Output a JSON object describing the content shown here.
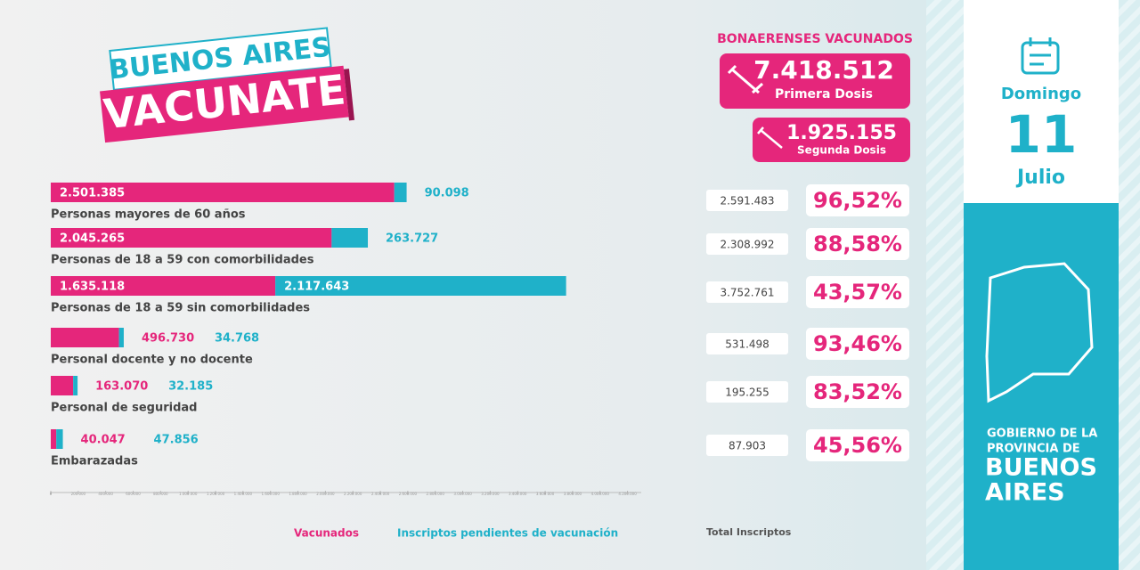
{
  "header": {
    "logo_line1": "BUENOS AIRES",
    "logo_line2": "VACUNATE"
  },
  "summary": {
    "title": "BONAERENSES VACUNADOS",
    "first_dose": {
      "number": "7.418.512",
      "label": "Primera Dosis"
    },
    "second_dose": {
      "number": "1.925.155",
      "label": "Segunda Dosis"
    }
  },
  "date": {
    "weekday": "Domingo",
    "day": "11",
    "month": "Julio"
  },
  "government": {
    "line1": "GOBIERNO DE LA",
    "line2": "PROVINCIA DE",
    "line3": "BUENOS",
    "line4": "AIRES"
  },
  "chart_data": {
    "type": "bar",
    "orientation": "horizontal",
    "stacked": true,
    "categories": [
      "Personas mayores de 60 años",
      "Personas de 18 a 59 con comorbilidades",
      "Personas de 18 a 59 sin comorbilidades",
      "Personal docente y no docente",
      "Personal de seguridad",
      "Embarazadas"
    ],
    "series": [
      {
        "name": "Vacunados",
        "color": "#e5267b",
        "values": [
          2501385,
          2045265,
          1635118,
          496730,
          163070,
          40047
        ],
        "value_labels": [
          "2.501.385",
          "2.045.265",
          "1.635.118",
          "496.730",
          "163.070",
          "40.047"
        ]
      },
      {
        "name": "Inscriptos pendientes  de vacunación",
        "color": "#1fb1c9",
        "values": [
          90098,
          263727,
          2117643,
          34768,
          32185,
          47856
        ],
        "value_labels": [
          "90.098",
          "263.727",
          "2.117.643",
          "34.768",
          "32.185",
          "47.856"
        ]
      }
    ],
    "totals": {
      "name": "Total Inscriptos",
      "values": [
        2591483,
        2308992,
        3752761,
        531498,
        195255,
        87903
      ],
      "value_labels": [
        "2.591.483",
        "2.308.992",
        "3.752.761",
        "531.498",
        "195.255",
        "87.903"
      ]
    },
    "percentages": {
      "values": [
        96.52,
        88.58,
        43.57,
        93.46,
        83.52,
        45.56
      ],
      "value_labels": [
        "96,52%",
        "88,58%",
        "43,57%",
        "93,46%",
        "83,52%",
        "45,56%"
      ]
    },
    "xlim": [
      0,
      4300000
    ],
    "xticks": [
      0,
      {
        "value": 200000,
        "label": "200.000"
      },
      {
        "value": 400000,
        "label": "400.000"
      },
      {
        "value": 600000,
        "label": "600.000"
      },
      {
        "value": 800000,
        "label": "800.000"
      },
      {
        "value": 1000000,
        "label": "1.000.000"
      },
      {
        "value": 1200000,
        "label": "1.200.000"
      },
      {
        "value": 1400000,
        "label": "1.400.000"
      },
      {
        "value": 1600000,
        "label": "1.600.000"
      },
      {
        "value": 1800000,
        "label": "1.800.000"
      },
      {
        "value": 2000000,
        "label": "2.000.000"
      },
      {
        "value": 2200000,
        "label": "2.200.000"
      },
      {
        "value": 2400000,
        "label": "2.400.000"
      },
      {
        "value": 2600000,
        "label": "2.600.000"
      },
      {
        "value": 2800000,
        "label": "2.800.000"
      },
      {
        "value": 3000000,
        "label": "3.000.000"
      },
      {
        "value": 3200000,
        "label": "3.200.000"
      },
      {
        "value": 3400000,
        "label": "3.400.000"
      },
      {
        "value": 3600000,
        "label": "3.600.000"
      },
      {
        "value": 3800000,
        "label": "3.800.000"
      },
      {
        "value": 4000000,
        "label": "4.000.000"
      },
      {
        "value": 4200000,
        "label": "4.200.000"
      }
    ]
  }
}
